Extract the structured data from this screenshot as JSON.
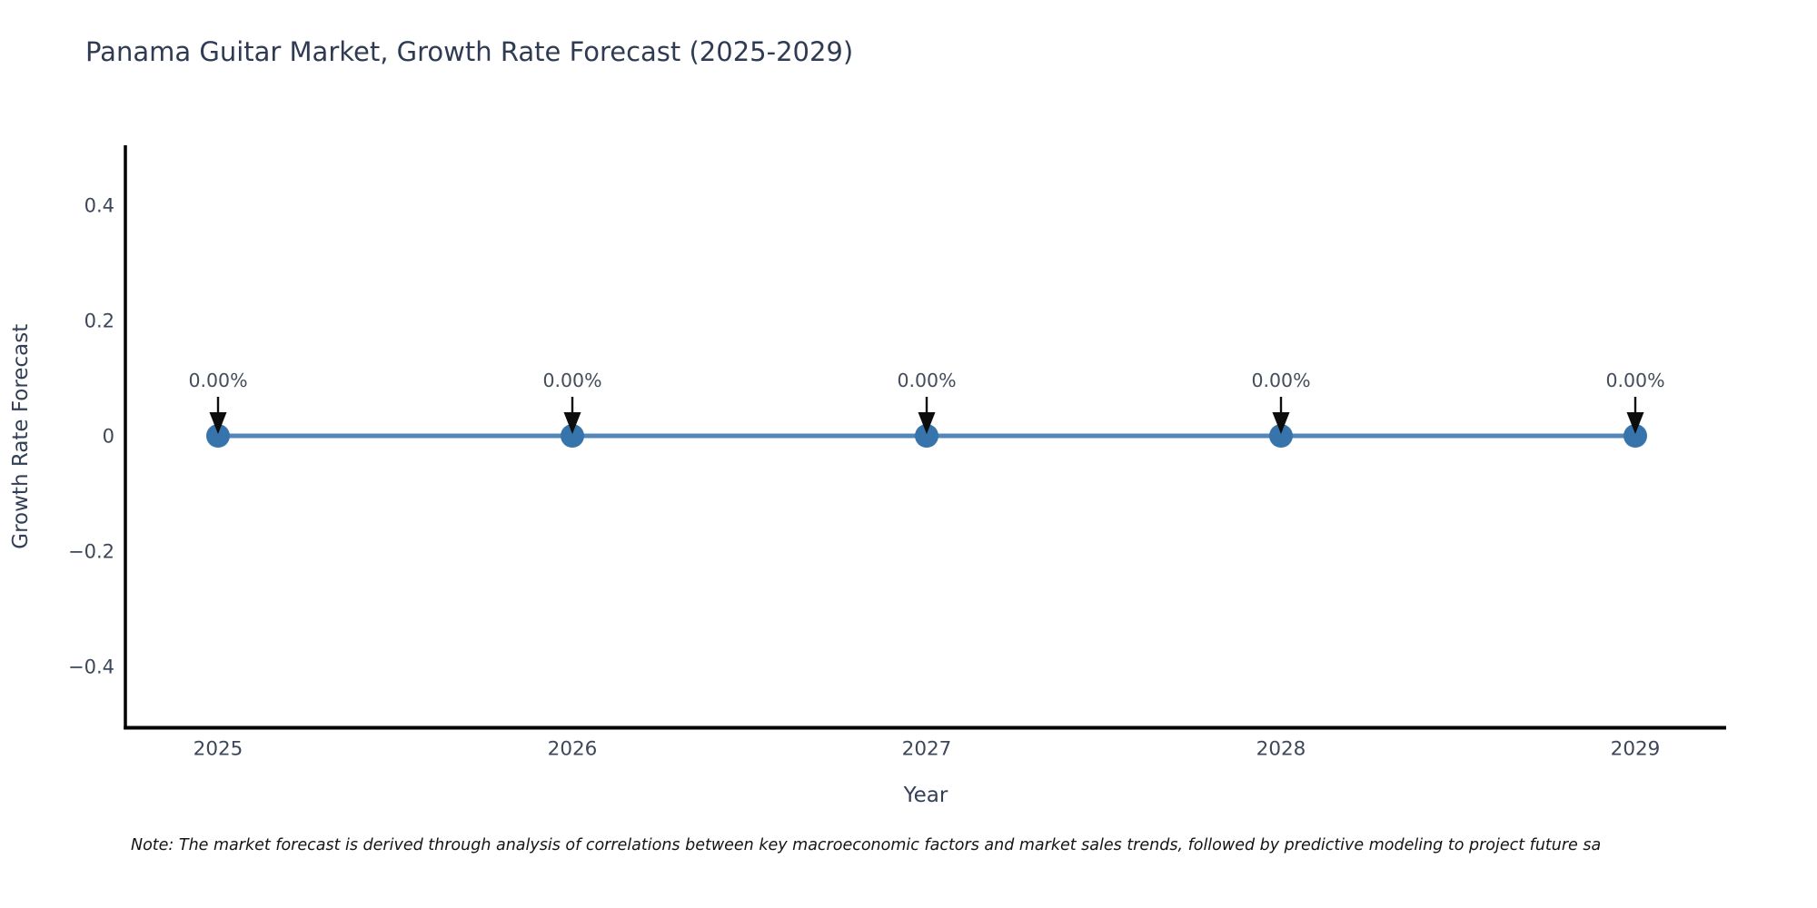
{
  "chart": {
    "title": "Panama Guitar Market, Growth Rate Forecast (2025-2029)",
    "xlabel": "Year",
    "ylabel": "Growth Rate Forecast",
    "note": "Note: The market forecast is derived through analysis of correlations between key macroeconomic factors and market sales trends, followed by predictive modeling to project future sa"
  },
  "chart_data": {
    "type": "line",
    "title": "Panama Guitar Market, Growth Rate Forecast (2025-2029)",
    "xlabel": "Year",
    "ylabel": "Growth Rate Forecast",
    "x": [
      2025,
      2026,
      2027,
      2028,
      2029
    ],
    "series": [
      {
        "name": "Growth Rate Forecast",
        "values": [
          0,
          0,
          0,
          0,
          0
        ]
      }
    ],
    "point_labels": [
      "0.00%",
      "0.00%",
      "0.00%",
      "0.00%",
      "0.00%"
    ],
    "yticks": [
      0.4,
      0.2,
      0,
      -0.2,
      -0.4
    ],
    "ylim": [
      -0.51,
      0.51
    ],
    "xlim": [
      2024.74,
      2029.26
    ],
    "grid": false,
    "legend": "none",
    "annotation_style": "down-arrow-to-point",
    "colors": {
      "line": "#5287b8",
      "marker": "#3674ab",
      "arrow": "#0d0d0d",
      "spine": "#000000",
      "title_text": "#2f3b52",
      "axis_label_text": "#333f56",
      "tick_text": "#3d4758",
      "annotation_text": "#434c5a",
      "note_text": "#141414",
      "background": "#ffffff"
    }
  }
}
